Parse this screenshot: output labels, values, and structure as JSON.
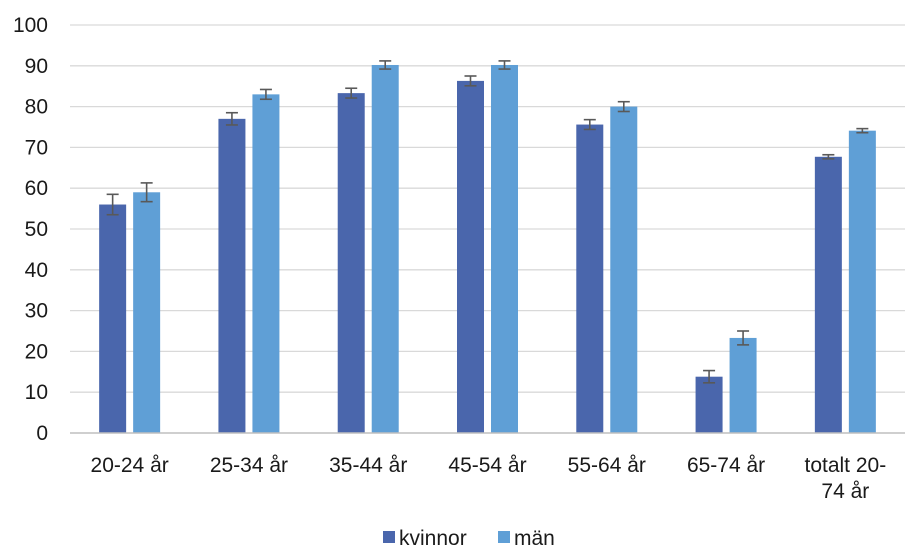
{
  "chart_data": {
    "type": "bar",
    "categories": [
      [
        "20-24 år"
      ],
      [
        "25-34 år"
      ],
      [
        "35-44 år"
      ],
      [
        "45-54 år"
      ],
      [
        "55-64 år"
      ],
      [
        "65-74 år"
      ],
      [
        "totalt 20-",
        "74 år"
      ]
    ],
    "series": [
      {
        "name": "kvinnor",
        "color": "#4a66ac",
        "values": [
          56,
          77,
          83.3,
          86.3,
          75.6,
          13.8,
          67.7
        ],
        "error": [
          2.5,
          1.5,
          1.2,
          1.2,
          1.2,
          1.5,
          0.5
        ]
      },
      {
        "name": "män",
        "color": "#5f9fd6",
        "values": [
          59,
          83,
          90.2,
          90.2,
          80,
          23.3,
          74.1
        ],
        "error": [
          2.3,
          1.2,
          1.0,
          1.0,
          1.2,
          1.7,
          0.5
        ]
      }
    ],
    "yticks": [
      "0",
      "10",
      "20",
      "30",
      "40",
      "50",
      "60",
      "70",
      "80",
      "90",
      "100"
    ],
    "ylim": [
      0,
      100
    ],
    "grid": true,
    "legend_position": "bottom"
  }
}
